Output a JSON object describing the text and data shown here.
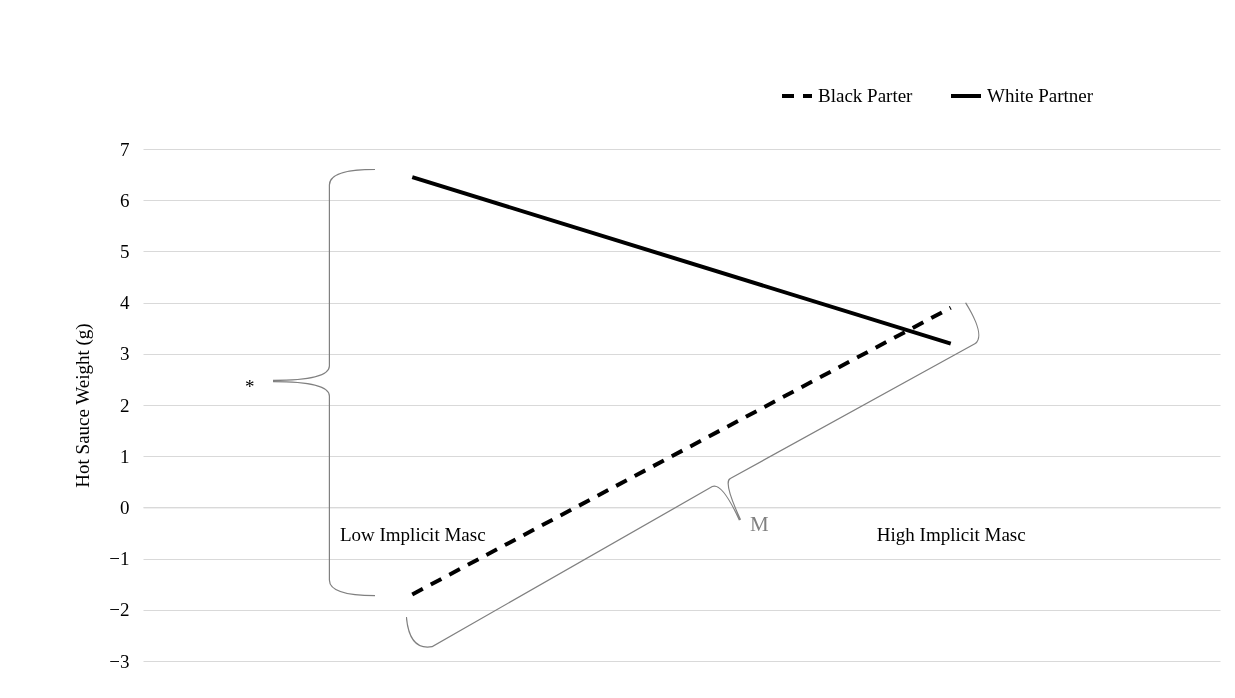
{
  "chart_data": {
    "type": "line",
    "categories": [
      "Low Implicit Masc",
      "High Implicit Masc"
    ],
    "series": [
      {
        "name": "Black Parter",
        "color": "#000000",
        "line_style": "dashed",
        "values": [
          -1.7,
          3.9
        ]
      },
      {
        "name": "White Partner",
        "color": "#000000",
        "line_style": "solid",
        "values": [
          6.45,
          3.2
        ]
      }
    ],
    "ylabel": "Hot Sauce Weight (g)",
    "ylim": [
      -3,
      7
    ],
    "yticks": [
      -3,
      -2,
      -1,
      0,
      1,
      2,
      3,
      4,
      5,
      6,
      7
    ],
    "grid": "y",
    "legend": "top right",
    "marker": "none",
    "annotations": [
      "*",
      "M"
    ]
  }
}
